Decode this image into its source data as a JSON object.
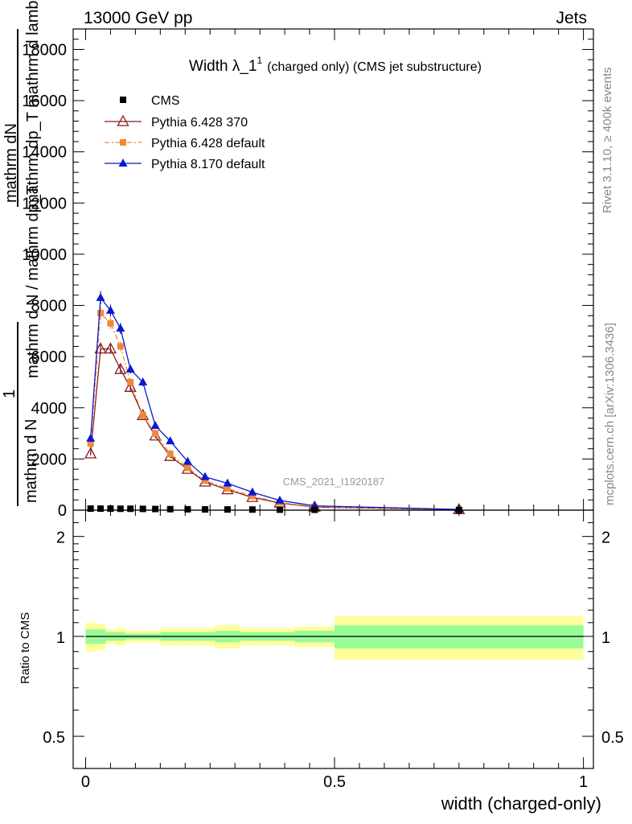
{
  "header": {
    "energy_label": "13000 GeV pp",
    "process_label": "Jets"
  },
  "side_labels": {
    "rivet": "Rivet 3.1.10, ≥ 400k events",
    "mcplots": "mcplots.cern.ch [arXiv:1306.3436]"
  },
  "chart_data": [
    {
      "type": "scatter",
      "title": "Width λ_1",
      "title_sup": "1",
      "title_suffix": "(charged only) (CMS jet substructure)",
      "watermark": "CMS_2021_I1920187",
      "ylabel_lines": [
        "mathrm dN",
        "mathrm dp_T mathrm d lambda",
        "mathrm d N / mathrm dp_T",
        "1",
        "mathrm d N"
      ],
      "ylim": [
        0,
        18800
      ],
      "xlim": [
        -0.025,
        1.02
      ],
      "yticks": [
        0,
        2000,
        4000,
        6000,
        8000,
        10000,
        12000,
        14000,
        16000,
        18000
      ],
      "ytick_labels": [
        "0",
        "2000",
        "4000",
        "6000",
        "8000",
        "10000",
        "12000",
        "14000",
        "16000",
        "18000"
      ],
      "legend_position": "top-left",
      "series": [
        {
          "name": "CMS",
          "color": "#000000",
          "marker": "square",
          "x": [
            0.01,
            0.03,
            0.05,
            0.07,
            0.09,
            0.115,
            0.14,
            0.17,
            0.205,
            0.24,
            0.285,
            0.335,
            0.39,
            0.46,
            0.75
          ],
          "y": [
            60,
            60,
            60,
            55,
            55,
            50,
            45,
            40,
            35,
            30,
            28,
            25,
            20,
            15,
            5
          ]
        },
        {
          "name": "Pythia 6.428 370",
          "color": "#8b1a1a",
          "marker": "open-triangle",
          "x": [
            0.01,
            0.03,
            0.05,
            0.07,
            0.09,
            0.115,
            0.14,
            0.17,
            0.205,
            0.24,
            0.285,
            0.335,
            0.39,
            0.46,
            0.75
          ],
          "y": [
            2200,
            6300,
            6300,
            5500,
            4800,
            3700,
            2900,
            2100,
            1600,
            1100,
            800,
            500,
            280,
            120,
            20
          ]
        },
        {
          "name": "Pythia 6.428 default",
          "color": "#f0883a",
          "marker": "square",
          "dashed": true,
          "x": [
            0.01,
            0.03,
            0.05,
            0.07,
            0.09,
            0.115,
            0.14,
            0.17,
            0.205,
            0.24,
            0.285,
            0.335,
            0.39,
            0.46,
            0.75
          ],
          "y": [
            2600,
            7700,
            7300,
            6400,
            5000,
            3700,
            3000,
            2200,
            1650,
            1150,
            850,
            550,
            300,
            130,
            20
          ]
        },
        {
          "name": "Pythia 8.170 default",
          "color": "#0a18d0",
          "marker": "triangle",
          "x": [
            0.01,
            0.03,
            0.05,
            0.07,
            0.09,
            0.115,
            0.14,
            0.17,
            0.205,
            0.24,
            0.285,
            0.335,
            0.39,
            0.46,
            0.75
          ],
          "y": [
            2800,
            8300,
            7800,
            7100,
            5500,
            5000,
            3300,
            2700,
            1900,
            1300,
            1050,
            700,
            380,
            170,
            30
          ]
        }
      ]
    },
    {
      "type": "area",
      "ylabel": "Ratio to CMS",
      "xlabel": "width (charged-only)",
      "xlim": [
        -0.025,
        1.02
      ],
      "ylim": [
        0.4,
        2.4
      ],
      "log_y": true,
      "xticks": [
        0,
        0.5,
        1
      ],
      "xtick_labels": [
        "0",
        "0.5",
        "1"
      ],
      "yticks": [
        0.5,
        1,
        2
      ],
      "ytick_labels": [
        "0.5",
        "1",
        "2"
      ],
      "band_colors": {
        "inner": "#98fb98",
        "outer": "#ffff99"
      },
      "bins": [
        {
          "lo": 0.0,
          "hi": 0.02,
          "inner_lo": 0.95,
          "inner_hi": 1.05,
          "outer_lo": 0.9,
          "outer_hi": 1.1
        },
        {
          "lo": 0.02,
          "hi": 0.04,
          "inner_lo": 0.95,
          "inner_hi": 1.05,
          "outer_lo": 0.91,
          "outer_hi": 1.09
        },
        {
          "lo": 0.04,
          "hi": 0.06,
          "inner_lo": 0.97,
          "inner_hi": 1.03,
          "outer_lo": 0.95,
          "outer_hi": 1.05
        },
        {
          "lo": 0.06,
          "hi": 0.08,
          "inner_lo": 0.97,
          "inner_hi": 1.03,
          "outer_lo": 0.94,
          "outer_hi": 1.06
        },
        {
          "lo": 0.08,
          "hi": 0.1,
          "inner_lo": 0.98,
          "inner_hi": 1.02,
          "outer_lo": 0.96,
          "outer_hi": 1.04
        },
        {
          "lo": 0.1,
          "hi": 0.13,
          "inner_lo": 0.98,
          "inner_hi": 1.02,
          "outer_lo": 0.96,
          "outer_hi": 1.04
        },
        {
          "lo": 0.13,
          "hi": 0.15,
          "inner_lo": 0.98,
          "inner_hi": 1.02,
          "outer_lo": 0.96,
          "outer_hi": 1.04
        },
        {
          "lo": 0.15,
          "hi": 0.19,
          "inner_lo": 0.97,
          "inner_hi": 1.03,
          "outer_lo": 0.94,
          "outer_hi": 1.06
        },
        {
          "lo": 0.19,
          "hi": 0.22,
          "inner_lo": 0.97,
          "inner_hi": 1.03,
          "outer_lo": 0.94,
          "outer_hi": 1.06
        },
        {
          "lo": 0.22,
          "hi": 0.26,
          "inner_lo": 0.97,
          "inner_hi": 1.03,
          "outer_lo": 0.94,
          "outer_hi": 1.06
        },
        {
          "lo": 0.26,
          "hi": 0.31,
          "inner_lo": 0.96,
          "inner_hi": 1.04,
          "outer_lo": 0.92,
          "outer_hi": 1.08
        },
        {
          "lo": 0.31,
          "hi": 0.36,
          "inner_lo": 0.97,
          "inner_hi": 1.03,
          "outer_lo": 0.94,
          "outer_hi": 1.06
        },
        {
          "lo": 0.36,
          "hi": 0.42,
          "inner_lo": 0.97,
          "inner_hi": 1.03,
          "outer_lo": 0.94,
          "outer_hi": 1.06
        },
        {
          "lo": 0.42,
          "hi": 0.5,
          "inner_lo": 0.96,
          "inner_hi": 1.04,
          "outer_lo": 0.93,
          "outer_hi": 1.07
        },
        {
          "lo": 0.5,
          "hi": 1.0,
          "inner_lo": 0.92,
          "inner_hi": 1.08,
          "outer_lo": 0.85,
          "outer_hi": 1.15
        }
      ]
    }
  ]
}
